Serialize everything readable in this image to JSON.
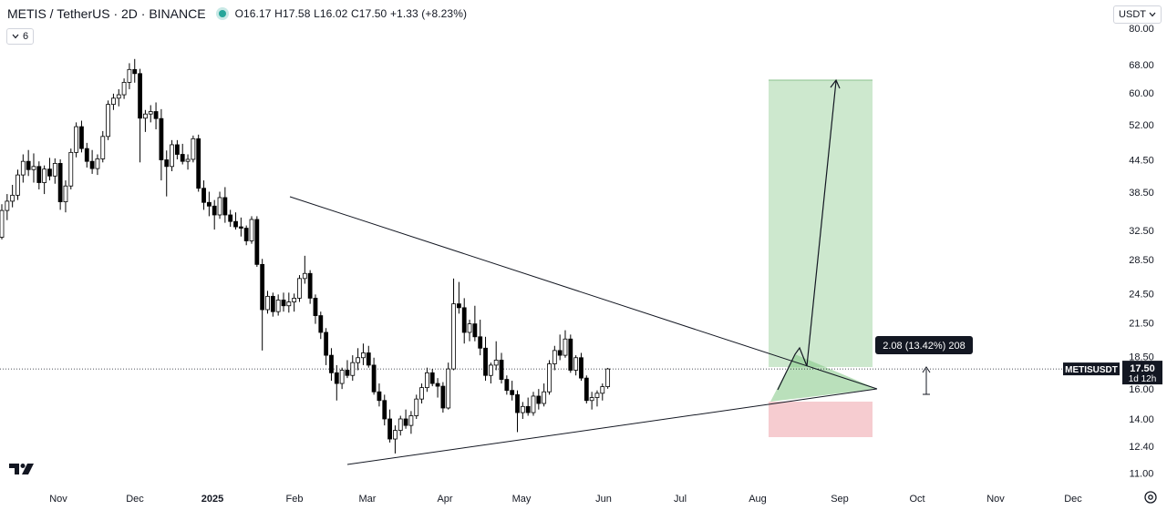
{
  "header": {
    "symbol": "METIS / TetherUS · 2D · BINANCE",
    "open": "O16.17",
    "high": "H17.58",
    "low": "L16.02",
    "close": "C17.50",
    "change": "+1.33 (+8.23%)"
  },
  "indicator_button": {
    "count": "6"
  },
  "currency_button": {
    "label": "USDT"
  },
  "colors": {
    "up": "#ffffff",
    "down": "#000000",
    "candle_border": "#000000",
    "target_zone": "#c8e6c9",
    "stop_zone": "#f5c6cb",
    "triangle_fill": "#81c784",
    "price_label_bg": "#131722"
  },
  "chart_data": {
    "type": "candlestick",
    "scale": "log",
    "x_labels": [
      "Nov",
      "Dec",
      "2025",
      "Feb",
      "Mar",
      "Apr",
      "May",
      "Jun",
      "Jul",
      "Aug",
      "Sep",
      "Oct",
      "Nov",
      "Dec"
    ],
    "y_ticks": [
      "80.00",
      "68.00",
      "60.00",
      "52.00",
      "44.50",
      "38.50",
      "32.50",
      "28.50",
      "24.50",
      "21.50",
      "18.50",
      "16.00",
      "14.00",
      "12.40",
      "11.00"
    ],
    "price_line": 17.5,
    "price_label": {
      "symbol": "METISUSDT",
      "price": "17.50",
      "countdown": "1d 12h"
    },
    "measure_label": "2.08 (13.42%) 208",
    "candles": [
      [
        31.5,
        36.5,
        31.2,
        35.5
      ],
      [
        35.5,
        38.2,
        34.0,
        37.0
      ],
      [
        37.0,
        39.8,
        36.0,
        38.0
      ],
      [
        38.0,
        42.6,
        37.2,
        41.6
      ],
      [
        41.6,
        45.6,
        40.2,
        44.2
      ],
      [
        44.2,
        46.5,
        41.4,
        42.6
      ],
      [
        42.6,
        45.8,
        40.2,
        43.2
      ],
      [
        43.2,
        44.2,
        39.0,
        40.2
      ],
      [
        40.2,
        43.4,
        38.2,
        42.7
      ],
      [
        42.7,
        44.9,
        40.6,
        41.4
      ],
      [
        41.4,
        44.8,
        40.0,
        43.8
      ],
      [
        43.8,
        44.6,
        35.6,
        36.9
      ],
      [
        36.9,
        40.6,
        35.2,
        39.6
      ],
      [
        39.6,
        46.8,
        39.0,
        46.0
      ],
      [
        46.0,
        52.6,
        45.0,
        51.6
      ],
      [
        51.6,
        53.0,
        46.0,
        46.8
      ],
      [
        46.8,
        48.0,
        43.0,
        44.2
      ],
      [
        44.2,
        46.5,
        41.8,
        42.8
      ],
      [
        42.8,
        45.6,
        41.6,
        44.7
      ],
      [
        44.7,
        50.6,
        44.0,
        49.4
      ],
      [
        49.4,
        58.0,
        48.6,
        57.0
      ],
      [
        57.0,
        59.8,
        55.6,
        58.6
      ],
      [
        58.6,
        61.0,
        56.5,
        59.5
      ],
      [
        59.5,
        64.0,
        58.4,
        62.9
      ],
      [
        62.9,
        68.5,
        61.0,
        66.6
      ],
      [
        66.6,
        69.8,
        62.8,
        65.4
      ],
      [
        65.4,
        66.8,
        44.0,
        53.6
      ],
      [
        53.6,
        55.6,
        50.4,
        54.6
      ],
      [
        54.6,
        56.8,
        52.6,
        55.2
      ],
      [
        55.2,
        57.5,
        51.0,
        53.5
      ],
      [
        53.5,
        55.8,
        40.6,
        44.5
      ],
      [
        44.5,
        46.4,
        37.8,
        43.2
      ],
      [
        43.2,
        48.6,
        42.3,
        47.6
      ],
      [
        47.6,
        48.6,
        44.6,
        45.6
      ],
      [
        45.6,
        47.8,
        43.6,
        44.2
      ],
      [
        44.2,
        45.6,
        42.6,
        44.6
      ],
      [
        44.6,
        49.6,
        44.0,
        48.9
      ],
      [
        48.9,
        49.8,
        38.6,
        39.2
      ],
      [
        39.2,
        40.6,
        35.6,
        36.8
      ],
      [
        36.8,
        38.6,
        34.6,
        36.2
      ],
      [
        36.2,
        37.2,
        32.6,
        34.8
      ],
      [
        34.8,
        38.6,
        34.2,
        37.6
      ],
      [
        37.6,
        39.4,
        33.6,
        34.8
      ],
      [
        34.8,
        35.6,
        33.0,
        33.8
      ],
      [
        33.8,
        35.2,
        32.6,
        33.0
      ],
      [
        33.0,
        34.4,
        31.6,
        32.8
      ],
      [
        32.8,
        33.2,
        30.4,
        31.0
      ],
      [
        31.0,
        34.6,
        30.6,
        34.1
      ],
      [
        34.1,
        34.6,
        27.6,
        27.9
      ],
      [
        27.9,
        28.6,
        19.0,
        22.8
      ],
      [
        22.8,
        24.8,
        22.4,
        24.2
      ],
      [
        24.2,
        24.6,
        22.1,
        22.6
      ],
      [
        22.6,
        24.4,
        22.2,
        23.8
      ],
      [
        23.8,
        24.6,
        22.6,
        23.2
      ],
      [
        23.2,
        24.6,
        22.5,
        23.6
      ],
      [
        23.6,
        24.5,
        22.6,
        24.0
      ],
      [
        24.0,
        26.6,
        23.6,
        26.2
      ],
      [
        26.2,
        29.0,
        25.6,
        26.8
      ],
      [
        26.8,
        27.2,
        23.4,
        24.0
      ],
      [
        24.0,
        24.4,
        21.4,
        22.2
      ],
      [
        22.2,
        22.6,
        20.0,
        20.6
      ],
      [
        20.6,
        21.0,
        17.8,
        18.6
      ],
      [
        18.6,
        19.2,
        16.6,
        17.2
      ],
      [
        17.2,
        17.8,
        15.2,
        16.4
      ],
      [
        16.4,
        17.6,
        16.0,
        17.4
      ],
      [
        17.4,
        18.2,
        16.8,
        17.0
      ],
      [
        17.0,
        18.6,
        16.6,
        18.0
      ],
      [
        18.0,
        19.2,
        17.4,
        18.4
      ],
      [
        18.4,
        19.6,
        17.8,
        18.8
      ],
      [
        18.8,
        19.4,
        17.6,
        17.8
      ],
      [
        17.8,
        18.4,
        15.6,
        15.8
      ],
      [
        15.8,
        16.4,
        14.8,
        15.2
      ],
      [
        15.2,
        15.6,
        13.6,
        14.0
      ],
      [
        14.0,
        14.6,
        12.6,
        12.8
      ],
      [
        12.8,
        13.6,
        12.0,
        13.3
      ],
      [
        13.3,
        14.2,
        13.0,
        14.0
      ],
      [
        14.0,
        14.6,
        13.4,
        13.6
      ],
      [
        13.6,
        14.5,
        13.1,
        14.2
      ],
      [
        14.2,
        15.6,
        14.0,
        15.3
      ],
      [
        15.3,
        16.4,
        15.0,
        16.1
      ],
      [
        16.1,
        17.6,
        15.8,
        17.2
      ],
      [
        17.2,
        17.5,
        16.2,
        16.4
      ],
      [
        16.4,
        16.8,
        15.4,
        16.2
      ],
      [
        16.2,
        16.5,
        14.4,
        14.7
      ],
      [
        14.7,
        18.0,
        14.6,
        17.5
      ],
      [
        17.5,
        26.2,
        17.4,
        23.4
      ],
      [
        23.4,
        25.8,
        22.4,
        23.0
      ],
      [
        23.0,
        24.0,
        19.6,
        20.6
      ],
      [
        20.6,
        21.8,
        19.8,
        21.4
      ],
      [
        21.4,
        23.2,
        19.8,
        20.2
      ],
      [
        20.2,
        21.8,
        18.6,
        19.2
      ],
      [
        19.2,
        20.2,
        16.6,
        17.0
      ],
      [
        17.0,
        18.0,
        16.4,
        17.8
      ],
      [
        17.8,
        19.8,
        17.4,
        18.2
      ],
      [
        18.2,
        18.8,
        16.4,
        16.7
      ],
      [
        16.7,
        17.0,
        15.6,
        15.9
      ],
      [
        15.9,
        16.6,
        15.2,
        15.6
      ],
      [
        15.6,
        15.9,
        13.2,
        14.4
      ],
      [
        14.4,
        15.1,
        14.0,
        14.8
      ],
      [
        14.8,
        15.4,
        14.2,
        14.4
      ],
      [
        14.4,
        15.8,
        14.2,
        15.5
      ],
      [
        15.5,
        16.0,
        14.6,
        15.0
      ],
      [
        15.0,
        16.4,
        14.8,
        15.8
      ],
      [
        15.8,
        18.2,
        15.6,
        17.9
      ],
      [
        17.9,
        19.4,
        17.4,
        19.0
      ],
      [
        19.0,
        20.4,
        18.2,
        18.6
      ],
      [
        18.6,
        20.8,
        18.4,
        20.0
      ],
      [
        20.0,
        20.4,
        17.2,
        17.4
      ],
      [
        17.4,
        18.6,
        17.0,
        18.4
      ],
      [
        18.4,
        18.8,
        16.6,
        16.8
      ],
      [
        16.8,
        17.0,
        15.0,
        15.2
      ],
      [
        15.2,
        15.8,
        14.6,
        15.4
      ],
      [
        15.4,
        15.9,
        14.8,
        15.7
      ],
      [
        15.7,
        16.4,
        15.2,
        16.17
      ],
      [
        16.17,
        17.58,
        16.02,
        17.5
      ]
    ]
  }
}
